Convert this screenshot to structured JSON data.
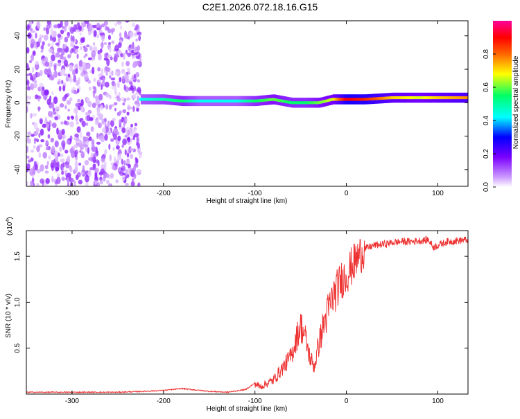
{
  "figure": {
    "title": "C2E1.2026.072.18.16.G15"
  },
  "chart_data": [
    {
      "type": "heatmap",
      "xlabel": "Height of straight line (km)",
      "ylabel": "Frequency (Hz)",
      "xlim": [
        -350,
        133
      ],
      "ylim": [
        -50,
        49
      ],
      "xticks": [
        -300,
        -200,
        -100,
        0,
        100
      ],
      "xtick_labels": [
        "-300",
        "-200",
        "-100",
        "0",
        "100"
      ],
      "yticks": [
        -40,
        -20,
        0,
        20,
        40
      ],
      "ytick_labels": [
        "-40",
        "-20",
        "0",
        "20",
        "40"
      ],
      "colorbar": {
        "label": "Normalized spectral amplitude",
        "range": [
          0,
          1
        ],
        "ticks": [
          0.0,
          0.2,
          0.4,
          0.6,
          0.8
        ],
        "tick_labels": [
          "0.0",
          "0.2",
          "0.4",
          "0.6",
          "0.8"
        ],
        "colors": [
          "#ffffff",
          "#cc99ff",
          "#7a00ff",
          "#0000ff",
          "#00ffff",
          "#00ff66",
          "#ffff00",
          "#ff6600",
          "#ff0000",
          "#ff0099"
        ]
      },
      "ridge": {
        "x": [
          -225,
          -200,
          -180,
          -160,
          -140,
          -120,
          -100,
          -80,
          -60,
          -45,
          -30,
          -15,
          0,
          20,
          50,
          80,
          100,
          133
        ],
        "y": [
          2,
          2,
          1,
          1,
          1,
          1,
          1,
          2,
          0,
          0,
          0,
          2,
          2,
          2,
          3,
          3,
          3,
          3
        ],
        "amplitude": [
          0.45,
          0.5,
          0.55,
          0.45,
          0.45,
          0.45,
          0.55,
          0.6,
          0.55,
          0.55,
          0.6,
          0.65,
          0.9,
          0.85,
          0.7,
          0.65,
          0.7,
          0.75
        ]
      },
      "noise_region": {
        "x_range": [
          -350,
          -225
        ],
        "amplitude": 0.15
      }
    },
    {
      "type": "line",
      "xlabel": "Height of straight line (km)",
      "ylabel": "SNR (10 * v/v)",
      "yscale_label": "(x10",
      "yscale_exponent": "4",
      "yscale_suffix": ")",
      "xlim": [
        -350,
        133
      ],
      "ylim": [
        0,
        1.78
      ],
      "xticks": [
        -300,
        -200,
        -100,
        0,
        100
      ],
      "xtick_labels": [
        "-300",
        "-200",
        "-100",
        "0",
        "100"
      ],
      "yticks": [
        0.5,
        1.0,
        1.5
      ],
      "ytick_labels": [
        "0.5",
        "1.0",
        "1.5"
      ],
      "color": "#ee3333",
      "series": [
        {
          "x": [
            -350,
            -300,
            -250,
            -220,
            -200,
            -180,
            -170,
            -160,
            -150,
            -130,
            -110,
            -100,
            -95,
            -90,
            -80,
            -70,
            -60,
            -55,
            -50,
            -45,
            -40,
            -35,
            -30,
            -25,
            -20,
            -15,
            -10,
            -5,
            0,
            5,
            10,
            15,
            20,
            25,
            30,
            40,
            50,
            60,
            70,
            80,
            90,
            95,
            100,
            110,
            120,
            133
          ],
          "y": [
            0.02,
            0.02,
            0.02,
            0.03,
            0.04,
            0.06,
            0.05,
            0.04,
            0.03,
            0.02,
            0.05,
            0.12,
            0.08,
            0.1,
            0.15,
            0.28,
            0.42,
            0.6,
            0.75,
            0.62,
            0.4,
            0.3,
            0.55,
            0.75,
            0.9,
            1.05,
            1.15,
            1.25,
            1.3,
            1.38,
            1.45,
            1.52,
            1.58,
            1.6,
            1.62,
            1.63,
            1.65,
            1.66,
            1.66,
            1.67,
            1.68,
            1.6,
            1.62,
            1.66,
            1.67,
            1.68
          ]
        }
      ]
    }
  ]
}
